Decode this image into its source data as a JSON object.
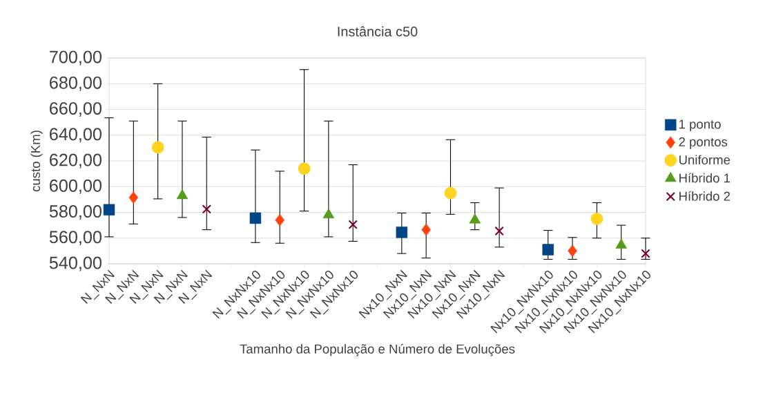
{
  "chart_data": {
    "type": "scatter",
    "title": "Instância c50",
    "xlabel": "Tamanho da População e Número de Evoluções",
    "ylabel": "custo (Km)",
    "categories": [
      "N_NxN",
      "N_NxN",
      "N_NxN",
      "N_NxN",
      "N_NxN",
      null,
      "N_NxNx10",
      "N_NxNx10",
      "N_NxNx10",
      "N_NxNx10",
      "N_NxNx10",
      null,
      "Nx10_NxN",
      "Nx10_NxN",
      "Nx10_NxN",
      "Nx10_NxN",
      "Nx10_NxN",
      null,
      "Nx10_NxNx10",
      "Nx10_NxNx10",
      "Nx10_NxNx10",
      "Nx10_NxNx10",
      "Nx10_NxNx10"
    ],
    "series": [
      {
        "name": "1 ponto",
        "color": "#004586",
        "marker": "square",
        "values": [
          582,
          null,
          null,
          null,
          null,
          null,
          575.5,
          null,
          null,
          null,
          null,
          null,
          564.5,
          null,
          null,
          null,
          null,
          null,
          551,
          null,
          null,
          null,
          null
        ],
        "errors": [
          [
            561,
            653.5
          ],
          null,
          null,
          null,
          null,
          null,
          [
            556.5,
            628.5
          ],
          null,
          null,
          null,
          null,
          null,
          [
            548,
            579.5
          ],
          null,
          null,
          null,
          null,
          null,
          [
            543.5,
            566
          ],
          null,
          null,
          null,
          null
        ]
      },
      {
        "name": "2 pontos",
        "color": "#ff420e",
        "marker": "diamond",
        "values": [
          null,
          591.5,
          null,
          null,
          null,
          null,
          null,
          574,
          null,
          null,
          null,
          null,
          null,
          566.5,
          null,
          null,
          null,
          null,
          null,
          550,
          null,
          null,
          null
        ],
        "errors": [
          null,
          [
            571,
            651
          ],
          null,
          null,
          null,
          null,
          null,
          [
            556,
            612
          ],
          null,
          null,
          null,
          null,
          null,
          [
            544.5,
            579.5
          ],
          null,
          null,
          null,
          null,
          null,
          [
            543.5,
            560.5
          ],
          null,
          null,
          null
        ]
      },
      {
        "name": "Uniforme",
        "color": "#ffd320",
        "marker": "circle",
        "values": [
          null,
          null,
          630.5,
          null,
          null,
          null,
          null,
          null,
          614,
          null,
          null,
          null,
          null,
          null,
          595,
          null,
          null,
          null,
          null,
          null,
          575,
          null,
          null
        ],
        "errors": [
          null,
          null,
          [
            590.5,
            680
          ],
          null,
          null,
          null,
          null,
          null,
          [
            581,
            691
          ],
          null,
          null,
          null,
          null,
          null,
          [
            578.5,
            636.5
          ],
          null,
          null,
          null,
          null,
          null,
          [
            560,
            587.5
          ],
          null,
          null
        ]
      },
      {
        "name": "Híbrido 1",
        "color": "#579d1c",
        "marker": "triangle",
        "values": [
          null,
          null,
          null,
          593,
          null,
          null,
          null,
          null,
          null,
          578,
          null,
          null,
          null,
          null,
          null,
          574,
          null,
          null,
          null,
          null,
          null,
          554.5,
          null
        ],
        "errors": [
          null,
          null,
          null,
          [
            576,
            651
          ],
          null,
          null,
          null,
          null,
          null,
          [
            561,
            651
          ],
          null,
          null,
          null,
          null,
          null,
          [
            566.5,
            587.5
          ],
          null,
          null,
          null,
          null,
          null,
          [
            543.5,
            570
          ],
          null
        ]
      },
      {
        "name": "Híbrido 2",
        "color": "#7e0021",
        "marker": "cross",
        "values": [
          null,
          null,
          null,
          null,
          582.5,
          null,
          null,
          null,
          null,
          null,
          570.5,
          null,
          null,
          null,
          null,
          null,
          565.5,
          null,
          null,
          null,
          null,
          null,
          548
        ],
        "errors": [
          null,
          null,
          null,
          null,
          [
            566.5,
            638.5
          ],
          null,
          null,
          null,
          null,
          null,
          [
            557.5,
            617
          ],
          null,
          null,
          null,
          null,
          null,
          [
            553,
            599
          ],
          null,
          null,
          null,
          null,
          null,
          [
            543.5,
            560
          ]
        ]
      }
    ],
    "ylim": [
      540,
      700
    ],
    "yticks": [
      {
        "value": 540,
        "label": "540,00"
      },
      {
        "value": 560,
        "label": "560,00"
      },
      {
        "value": 580,
        "label": "580,00"
      },
      {
        "value": 600,
        "label": "600,00"
      },
      {
        "value": 620,
        "label": "620,00"
      },
      {
        "value": 640,
        "label": "640,00"
      },
      {
        "value": 660,
        "label": "660,00"
      },
      {
        "value": 680,
        "label": "680,00"
      },
      {
        "value": 700,
        "label": "700,00"
      }
    ],
    "grid": "y",
    "legend": "right"
  }
}
